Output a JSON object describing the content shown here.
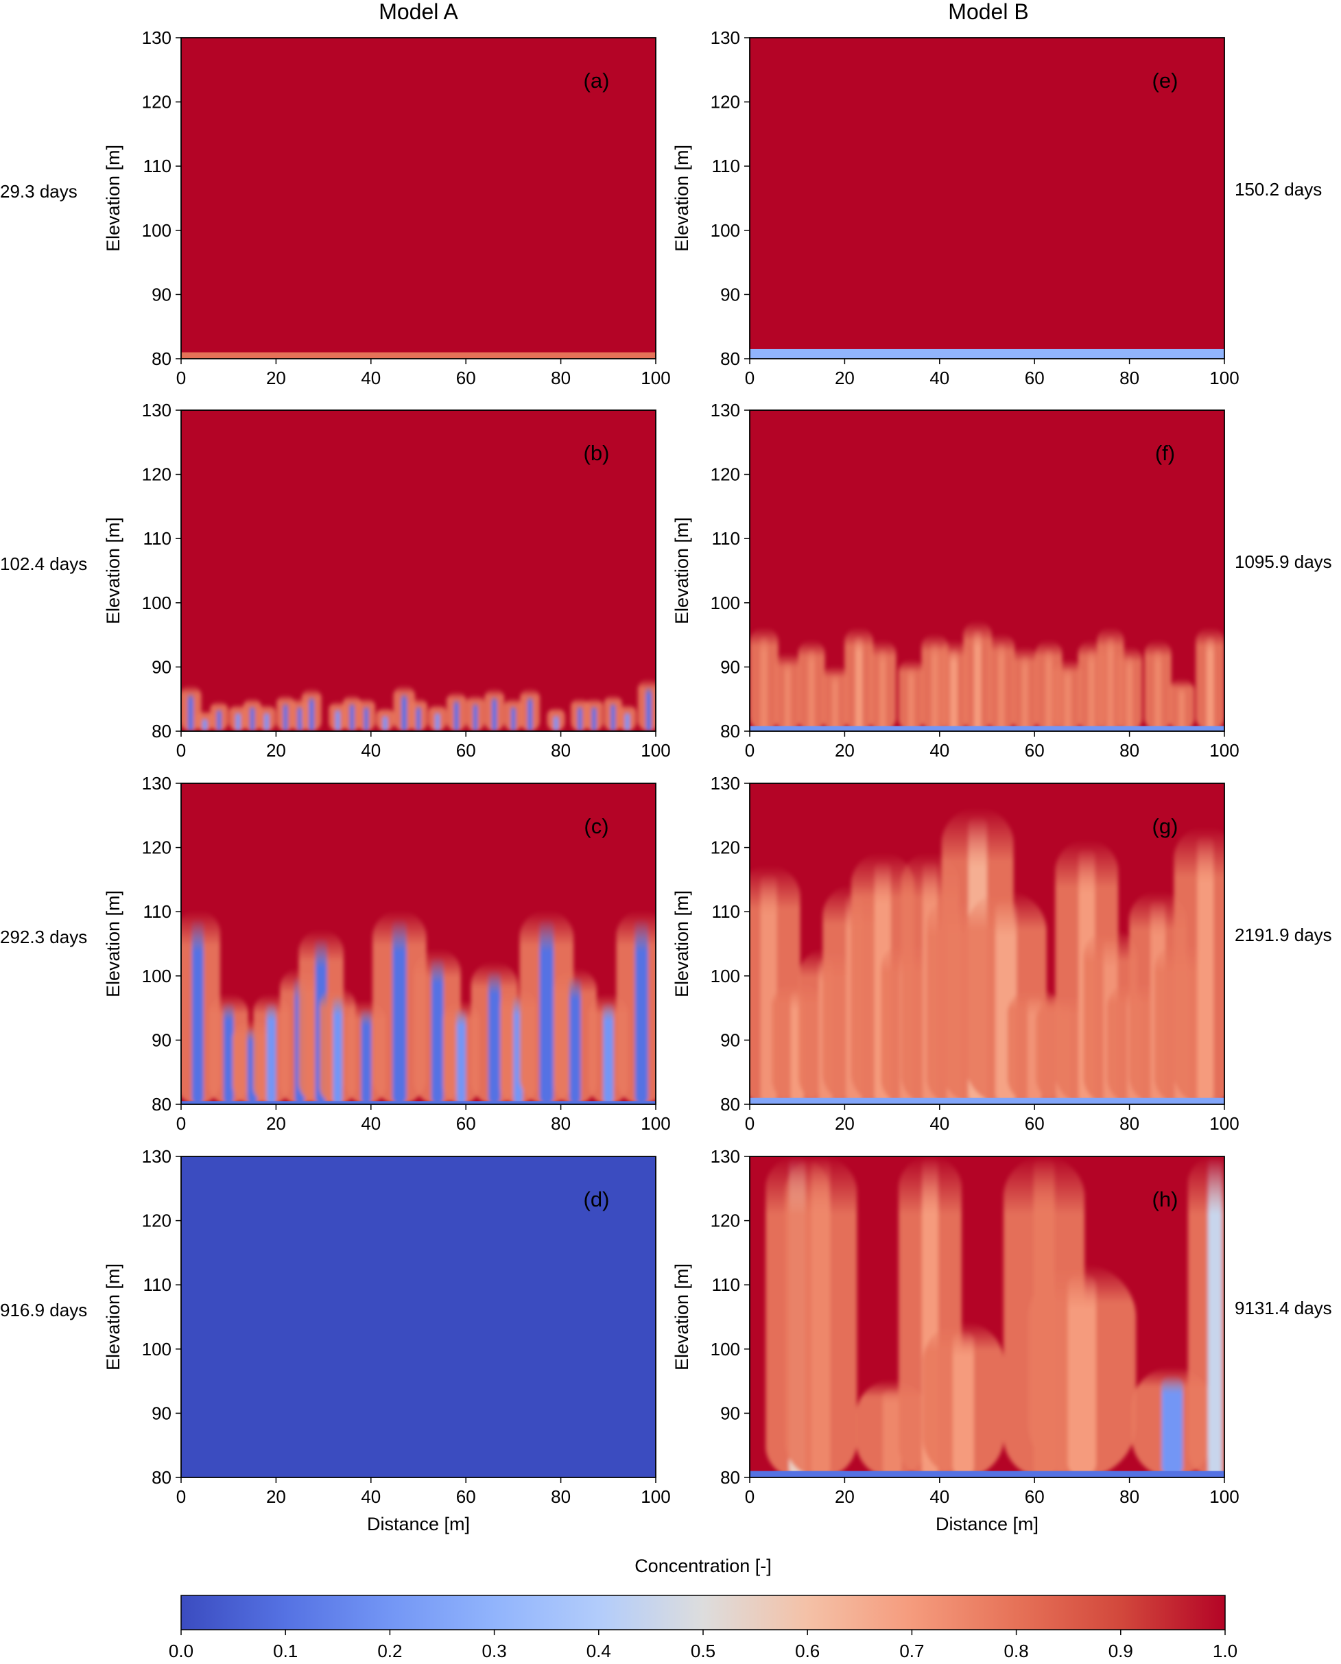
{
  "columns": [
    "Model A",
    "Model B"
  ],
  "colormap": {
    "name": "coolwarm",
    "low": "#3b4cc0",
    "mid": "#dddddd",
    "high": "#b40426"
  },
  "colorbar": {
    "label": "Concentration [-]",
    "ticks": [
      "0.0",
      "0.1",
      "0.2",
      "0.3",
      "0.4",
      "0.5",
      "0.6",
      "0.7",
      "0.8",
      "0.9",
      "1.0"
    ]
  },
  "chart_data": [
    {
      "type": "heatmap",
      "panel": "(a)",
      "model": "Model A",
      "time": "29.3 days",
      "xlabel": "",
      "ylabel": "Elevation [m]",
      "xlim": [
        0,
        100
      ],
      "ylim": [
        80,
        130
      ],
      "xticks": [
        "0",
        "20",
        "40",
        "60",
        "80",
        "100"
      ],
      "yticks": [
        "80",
        "90",
        "100",
        "110",
        "120",
        "130"
      ],
      "background_value": 1.0,
      "boundary_layer_top": 81,
      "boundary_value": 0.8,
      "fingers": []
    },
    {
      "type": "heatmap",
      "panel": "(b)",
      "model": "Model A",
      "time": "102.4 days",
      "xlabel": "",
      "ylabel": "Elevation [m]",
      "xlim": [
        0,
        100
      ],
      "ylim": [
        80,
        130
      ],
      "xticks": [
        "0",
        "20",
        "40",
        "60",
        "80",
        "100"
      ],
      "yticks": [
        "80",
        "90",
        "100",
        "110",
        "120",
        "130"
      ],
      "background_value": 1.0,
      "boundary_layer_top": 80,
      "boundary_value": 0.1,
      "fingers": [
        {
          "x": 2,
          "top": 86,
          "w": 1.2,
          "core": 0.1
        },
        {
          "x": 5,
          "top": 82,
          "w": 1.0,
          "core": 0.2
        },
        {
          "x": 8,
          "top": 83.5,
          "w": 1.0,
          "core": 0.1
        },
        {
          "x": 12,
          "top": 83,
          "w": 1.0,
          "core": 0.2
        },
        {
          "x": 15,
          "top": 84,
          "w": 1.0,
          "core": 0.1
        },
        {
          "x": 18,
          "top": 83,
          "w": 1.0,
          "core": 0.2
        },
        {
          "x": 22,
          "top": 84.5,
          "w": 1.0,
          "core": 0.1
        },
        {
          "x": 25,
          "top": 84,
          "w": 1.0,
          "core": 0.1
        },
        {
          "x": 27.5,
          "top": 85.5,
          "w": 1.1,
          "core": 0.1
        },
        {
          "x": 33,
          "top": 83.5,
          "w": 1.0,
          "core": 0.2
        },
        {
          "x": 36,
          "top": 84.5,
          "w": 1.0,
          "core": 0.1
        },
        {
          "x": 39,
          "top": 84,
          "w": 1.0,
          "core": 0.1
        },
        {
          "x": 43,
          "top": 82.5,
          "w": 1.0,
          "core": 0.2
        },
        {
          "x": 47,
          "top": 86,
          "w": 1.2,
          "core": 0.1
        },
        {
          "x": 50,
          "top": 84,
          "w": 1.0,
          "core": 0.1
        },
        {
          "x": 54,
          "top": 83,
          "w": 1.0,
          "core": 0.2
        },
        {
          "x": 58,
          "top": 85,
          "w": 1.1,
          "core": 0.1
        },
        {
          "x": 62,
          "top": 84.5,
          "w": 1.0,
          "core": 0.1
        },
        {
          "x": 66,
          "top": 85.5,
          "w": 1.1,
          "core": 0.1
        },
        {
          "x": 70,
          "top": 84,
          "w": 1.0,
          "core": 0.1
        },
        {
          "x": 73.5,
          "top": 85.5,
          "w": 1.1,
          "core": 0.1
        },
        {
          "x": 79,
          "top": 82.5,
          "w": 1.0,
          "core": 0.2
        },
        {
          "x": 84,
          "top": 84,
          "w": 1.0,
          "core": 0.1
        },
        {
          "x": 87,
          "top": 84,
          "w": 1.0,
          "core": 0.1
        },
        {
          "x": 91,
          "top": 84.5,
          "w": 1.0,
          "core": 0.1
        },
        {
          "x": 94,
          "top": 83,
          "w": 1.0,
          "core": 0.2
        },
        {
          "x": 98.5,
          "top": 87,
          "w": 1.2,
          "core": 0.1
        }
      ]
    },
    {
      "type": "heatmap",
      "panel": "(c)",
      "model": "Model A",
      "time": "292.3 days",
      "xlabel": "",
      "ylabel": "Elevation [m]",
      "xlim": [
        0,
        100
      ],
      "ylim": [
        80,
        130
      ],
      "xticks": [
        "0",
        "20",
        "40",
        "60",
        "80",
        "100"
      ],
      "yticks": [
        "80",
        "90",
        "100",
        "110",
        "120",
        "130"
      ],
      "background_value": 1.0,
      "boundary_layer_top": 80.5,
      "boundary_value": 0.1,
      "fingers": [
        {
          "x": 3.5,
          "top": 109,
          "w": 2.5,
          "core": 0.1
        },
        {
          "x": 10,
          "top": 96,
          "w": 2.2,
          "core": 0.1
        },
        {
          "x": 15,
          "top": 92,
          "w": 2.2,
          "core": 0.1
        },
        {
          "x": 19,
          "top": 96,
          "w": 2.0,
          "core": 0.2
        },
        {
          "x": 25,
          "top": 100,
          "w": 2.2,
          "core": 0.1
        },
        {
          "x": 29.5,
          "top": 106,
          "w": 2.5,
          "core": 0.1
        },
        {
          "x": 33,
          "top": 97,
          "w": 2.0,
          "core": 0.2
        },
        {
          "x": 39,
          "top": 95,
          "w": 2.2,
          "core": 0.1
        },
        {
          "x": 46,
          "top": 109,
          "w": 3.0,
          "core": 0.1
        },
        {
          "x": 54,
          "top": 103,
          "w": 2.6,
          "core": 0.1
        },
        {
          "x": 59,
          "top": 95,
          "w": 2.0,
          "core": 0.2
        },
        {
          "x": 66,
          "top": 101,
          "w": 2.6,
          "core": 0.1
        },
        {
          "x": 71,
          "top": 97,
          "w": 2.0,
          "core": 0.2
        },
        {
          "x": 77,
          "top": 109,
          "w": 3.0,
          "core": 0.1
        },
        {
          "x": 83,
          "top": 100,
          "w": 2.4,
          "core": 0.1
        },
        {
          "x": 90,
          "top": 96,
          "w": 2.2,
          "core": 0.2
        },
        {
          "x": 97,
          "top": 109,
          "w": 2.8,
          "core": 0.1
        }
      ]
    },
    {
      "type": "heatmap",
      "panel": "(d)",
      "model": "Model A",
      "time": "916.9 days",
      "xlabel": "Distance [m]",
      "ylabel": "Elevation [m]",
      "xlim": [
        0,
        100
      ],
      "ylim": [
        80,
        130
      ],
      "xticks": [
        "0",
        "20",
        "40",
        "60",
        "80",
        "100"
      ],
      "yticks": [
        "80",
        "90",
        "100",
        "110",
        "120",
        "130"
      ],
      "background_value": 0.0,
      "boundary_layer_top": 80,
      "boundary_value": 0.0,
      "fingers": []
    },
    {
      "type": "heatmap",
      "panel": "(e)",
      "model": "Model B",
      "time": "150.2 days",
      "xlabel": "",
      "ylabel": "Elevation [m]",
      "xlim": [
        0,
        100
      ],
      "ylim": [
        80,
        130
      ],
      "xticks": [
        "0",
        "20",
        "40",
        "60",
        "80",
        "100"
      ],
      "yticks": [
        "80",
        "90",
        "100",
        "110",
        "120",
        "130"
      ],
      "background_value": 1.0,
      "boundary_layer_top": 81.5,
      "boundary_value": 0.3,
      "fingers": []
    },
    {
      "type": "heatmap",
      "panel": "(f)",
      "model": "Model B",
      "time": "1095.9 days",
      "xlabel": "",
      "ylabel": "Elevation [m]",
      "xlim": [
        0,
        100
      ],
      "ylim": [
        80,
        130
      ],
      "xticks": [
        "0",
        "20",
        "40",
        "60",
        "80",
        "100"
      ],
      "yticks": [
        "80",
        "90",
        "100",
        "110",
        "120",
        "130"
      ],
      "background_value": 1.0,
      "boundary_layer_top": 80.8,
      "boundary_value": 0.2,
      "fingers": [
        {
          "x": 3,
          "top": 95,
          "w": 1.6,
          "core": 0.75
        },
        {
          "x": 8,
          "top": 91,
          "w": 1.4,
          "core": 0.75
        },
        {
          "x": 13,
          "top": 93,
          "w": 1.5,
          "core": 0.75
        },
        {
          "x": 18,
          "top": 89,
          "w": 1.4,
          "core": 0.75
        },
        {
          "x": 23,
          "top": 95,
          "w": 1.6,
          "core": 0.7
        },
        {
          "x": 28,
          "top": 93,
          "w": 1.5,
          "core": 0.75
        },
        {
          "x": 34,
          "top": 90,
          "w": 1.4,
          "core": 0.75
        },
        {
          "x": 39,
          "top": 94,
          "w": 1.5,
          "core": 0.75
        },
        {
          "x": 43,
          "top": 93,
          "w": 1.6,
          "core": 0.7
        },
        {
          "x": 48,
          "top": 96,
          "w": 1.6,
          "core": 0.7
        },
        {
          "x": 53,
          "top": 94,
          "w": 1.5,
          "core": 0.75
        },
        {
          "x": 58,
          "top": 92,
          "w": 1.4,
          "core": 0.75
        },
        {
          "x": 63,
          "top": 93,
          "w": 1.5,
          "core": 0.75
        },
        {
          "x": 67,
          "top": 90,
          "w": 1.6,
          "core": 0.75
        },
        {
          "x": 72,
          "top": 93,
          "w": 1.5,
          "core": 0.75
        },
        {
          "x": 76,
          "top": 95,
          "w": 1.5,
          "core": 0.75
        },
        {
          "x": 80,
          "top": 92,
          "w": 1.4,
          "core": 0.75
        },
        {
          "x": 86,
          "top": 93,
          "w": 1.5,
          "core": 0.75
        },
        {
          "x": 91,
          "top": 87,
          "w": 1.4,
          "core": 0.75
        },
        {
          "x": 97,
          "top": 95,
          "w": 1.6,
          "core": 0.7
        }
      ]
    },
    {
      "type": "heatmap",
      "panel": "(g)",
      "model": "Model B",
      "time": "2191.9 days",
      "xlabel": "",
      "ylabel": "Elevation [m]",
      "xlim": [
        0,
        100
      ],
      "ylim": [
        80,
        130
      ],
      "xticks": [
        "0",
        "20",
        "40",
        "60",
        "80",
        "100"
      ],
      "yticks": [
        "80",
        "90",
        "100",
        "110",
        "120",
        "130"
      ],
      "background_value": 1.0,
      "boundary_layer_top": 81,
      "boundary_value": 0.25,
      "fingers": [
        {
          "x": 4,
          "top": 116,
          "w": 3.5,
          "core": 0.72
        },
        {
          "x": 10,
          "top": 98,
          "w": 2.8,
          "core": 0.7
        },
        {
          "x": 16,
          "top": 103,
          "w": 3.0,
          "core": 0.72
        },
        {
          "x": 22,
          "top": 113,
          "w": 3.5,
          "core": 0.72
        },
        {
          "x": 28,
          "top": 118,
          "w": 3.5,
          "core": 0.7
        },
        {
          "x": 33,
          "top": 104,
          "w": 2.8,
          "core": 0.72
        },
        {
          "x": 38,
          "top": 118,
          "w": 3.2,
          "core": 0.72
        },
        {
          "x": 43,
          "top": 111,
          "w": 3.0,
          "core": 0.72
        },
        {
          "x": 48,
          "top": 125,
          "w": 4.0,
          "core": 0.65
        },
        {
          "x": 54,
          "top": 112,
          "w": 4.5,
          "core": 0.68
        },
        {
          "x": 60,
          "top": 97,
          "w": 3.0,
          "core": 0.72
        },
        {
          "x": 66,
          "top": 96,
          "w": 3.0,
          "core": 0.72
        },
        {
          "x": 71,
          "top": 120,
          "w": 3.5,
          "core": 0.7
        },
        {
          "x": 76,
          "top": 106,
          "w": 3.0,
          "core": 0.72
        },
        {
          "x": 81,
          "top": 98,
          "w": 3.0,
          "core": 0.72
        },
        {
          "x": 86,
          "top": 112,
          "w": 3.2,
          "core": 0.72
        },
        {
          "x": 91,
          "top": 104,
          "w": 3.0,
          "core": 0.72
        },
        {
          "x": 96,
          "top": 122,
          "w": 3.5,
          "core": 0.7
        }
      ]
    },
    {
      "type": "heatmap",
      "panel": "(h)",
      "model": "Model B",
      "time": "9131.4 days",
      "xlabel": "Distance [m]",
      "ylabel": "Elevation [m]",
      "xlim": [
        0,
        100
      ],
      "ylim": [
        80,
        130
      ],
      "xticks": [
        "0",
        "20",
        "40",
        "60",
        "80",
        "100"
      ],
      "yticks": [
        "80",
        "90",
        "100",
        "110",
        "120",
        "130"
      ],
      "background_value": 1.0,
      "boundary_layer_top": 81,
      "boundary_value": 0.1,
      "fingers": [
        {
          "x": 10,
          "top": 130,
          "w": 3.5,
          "core": 0.55
        },
        {
          "x": 15,
          "top": 130,
          "w": 4.0,
          "core": 0.75
        },
        {
          "x": 30,
          "top": 94,
          "w": 4.0,
          "core": 0.75
        },
        {
          "x": 38,
          "top": 130,
          "w": 3.5,
          "core": 0.7
        },
        {
          "x": 45,
          "top": 103,
          "w": 4.5,
          "core": 0.7
        },
        {
          "x": 62,
          "top": 130,
          "w": 4.5,
          "core": 0.78
        },
        {
          "x": 70,
          "top": 112,
          "w": 6.0,
          "core": 0.7
        },
        {
          "x": 89,
          "top": 96,
          "w": 4.5,
          "core": 0.2
        },
        {
          "x": 98,
          "top": 130,
          "w": 3.0,
          "core": 0.45
        }
      ]
    }
  ]
}
